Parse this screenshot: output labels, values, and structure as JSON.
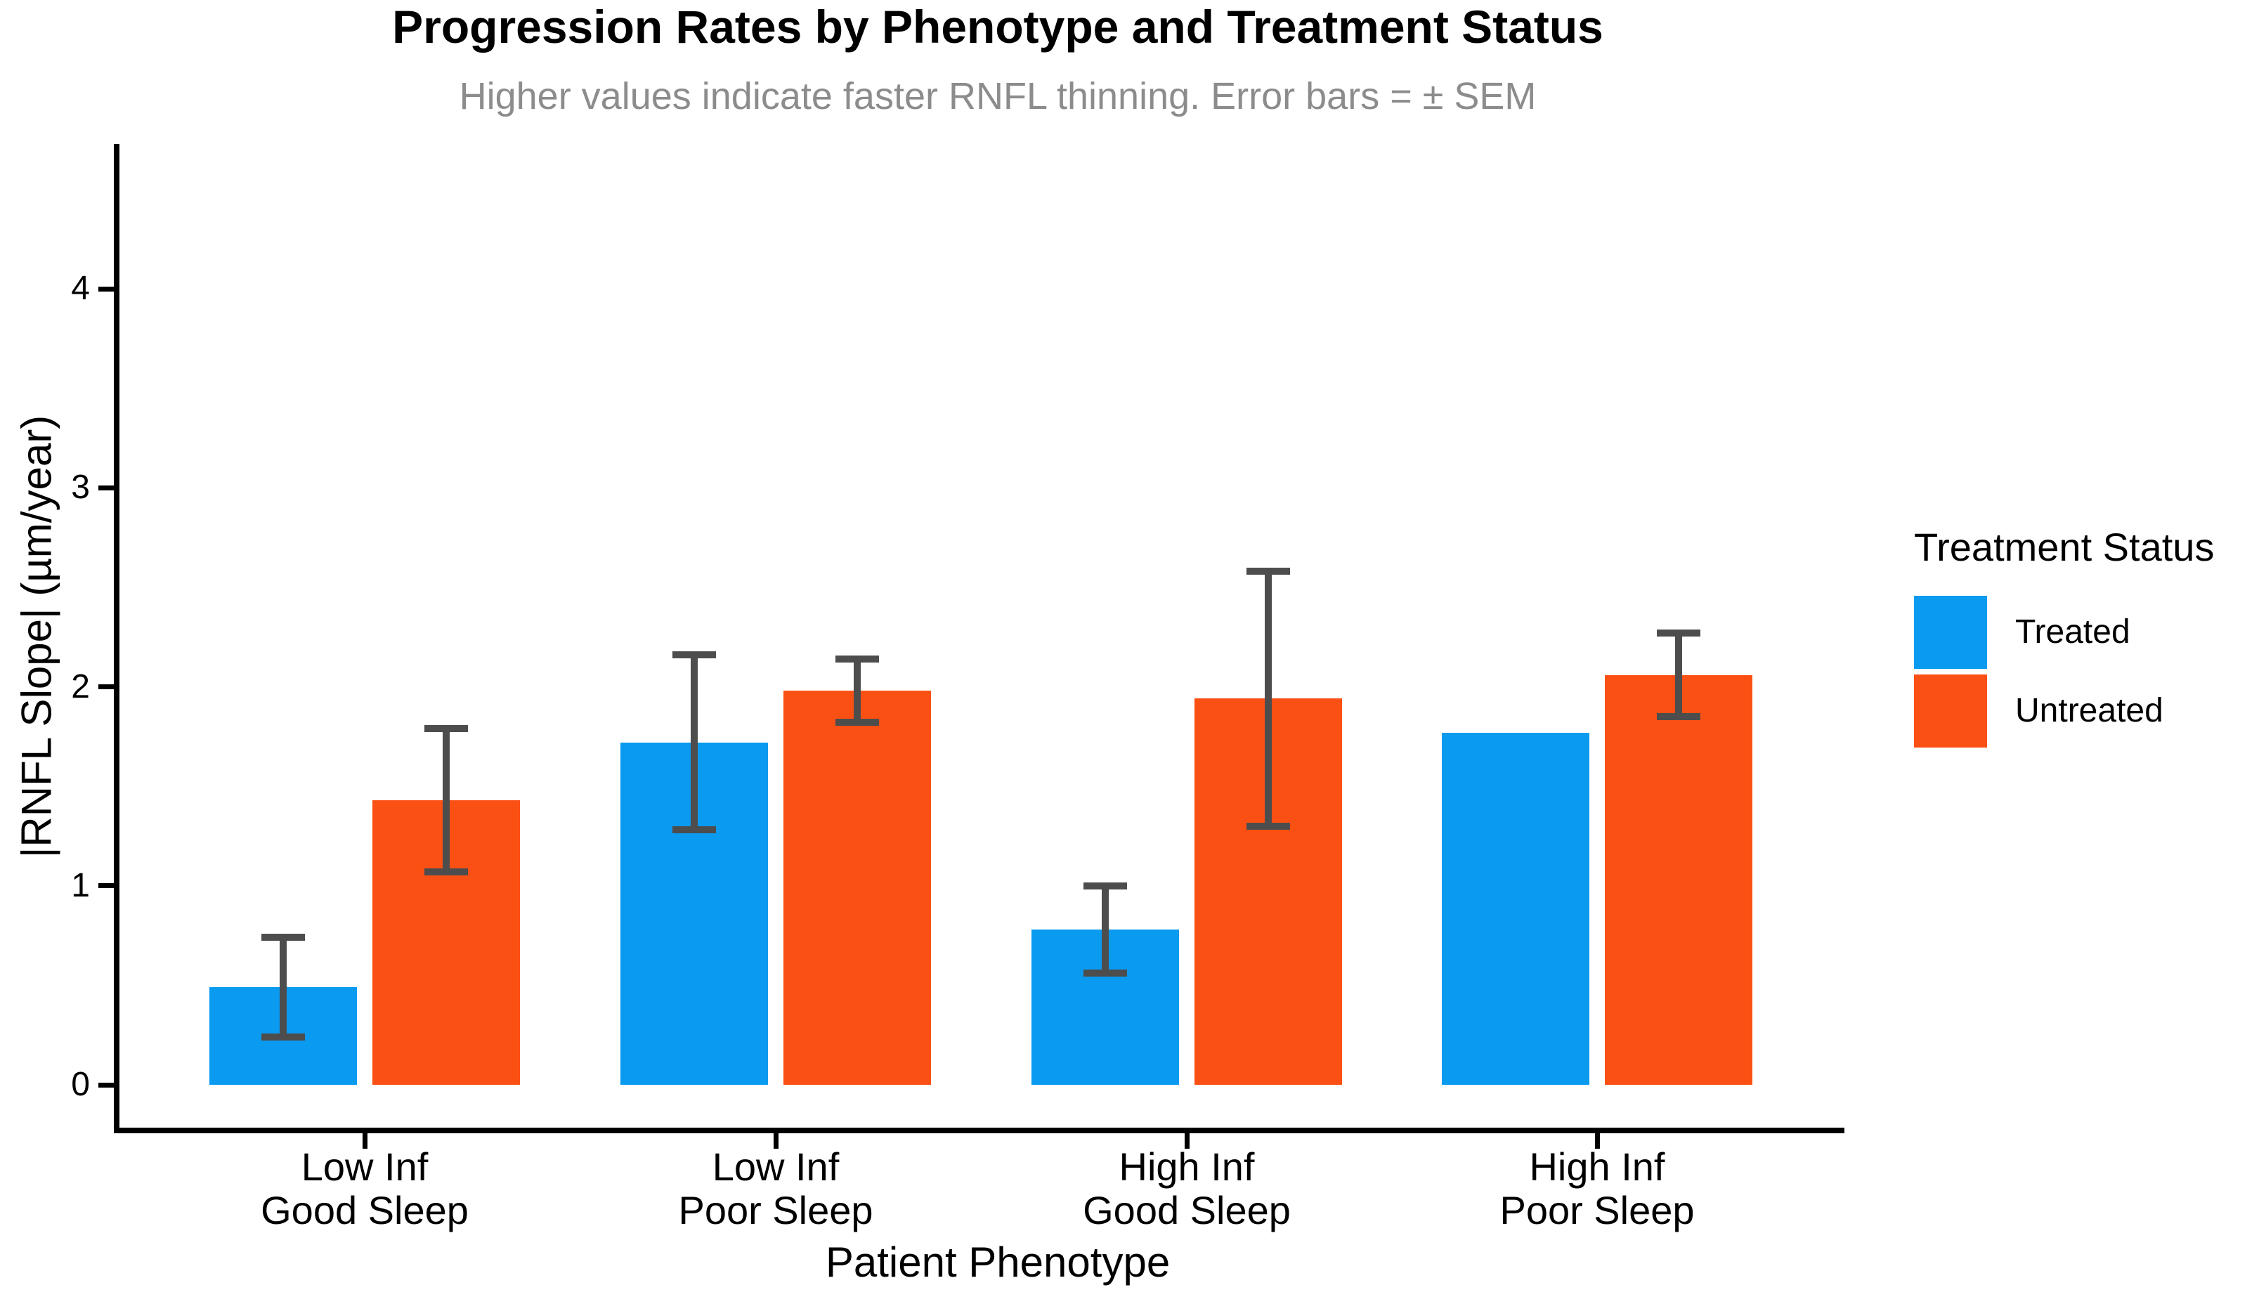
{
  "chart_data": {
    "type": "bar",
    "title": "Progression Rates by Phenotype and Treatment Status",
    "subtitle": "Higher values indicate faster RNFL thinning. Error bars = ± SEM",
    "xlabel": "Patient Phenotype",
    "ylabel": "|RNFL Slope| (µm/year)",
    "categories": [
      [
        "Low Inf",
        "Good Sleep"
      ],
      [
        "Low Inf",
        "Poor Sleep"
      ],
      [
        "High Inf",
        "Good Sleep"
      ],
      [
        "High Inf",
        "Poor Sleep"
      ]
    ],
    "series": [
      {
        "name": "Treated",
        "color": "#0a9af0",
        "values": [
          0.49,
          1.72,
          0.78,
          1.77
        ],
        "sem": [
          0.25,
          0.44,
          0.22,
          null
        ]
      },
      {
        "name": "Untreated",
        "color": "#fb5014",
        "values": [
          1.43,
          1.98,
          1.94,
          2.06
        ],
        "sem": [
          0.36,
          0.16,
          0.64,
          0.21
        ]
      }
    ],
    "yticks": [
      0,
      1,
      2,
      3,
      4
    ],
    "ylim": [
      -0.25,
      4.75
    ],
    "grid": false,
    "legend": {
      "title": "Treatment Status",
      "position": "right"
    },
    "error_bar_color": "#4d4d4d",
    "subtitle_color": "#8c8c8c",
    "axis_color": "#000000"
  }
}
